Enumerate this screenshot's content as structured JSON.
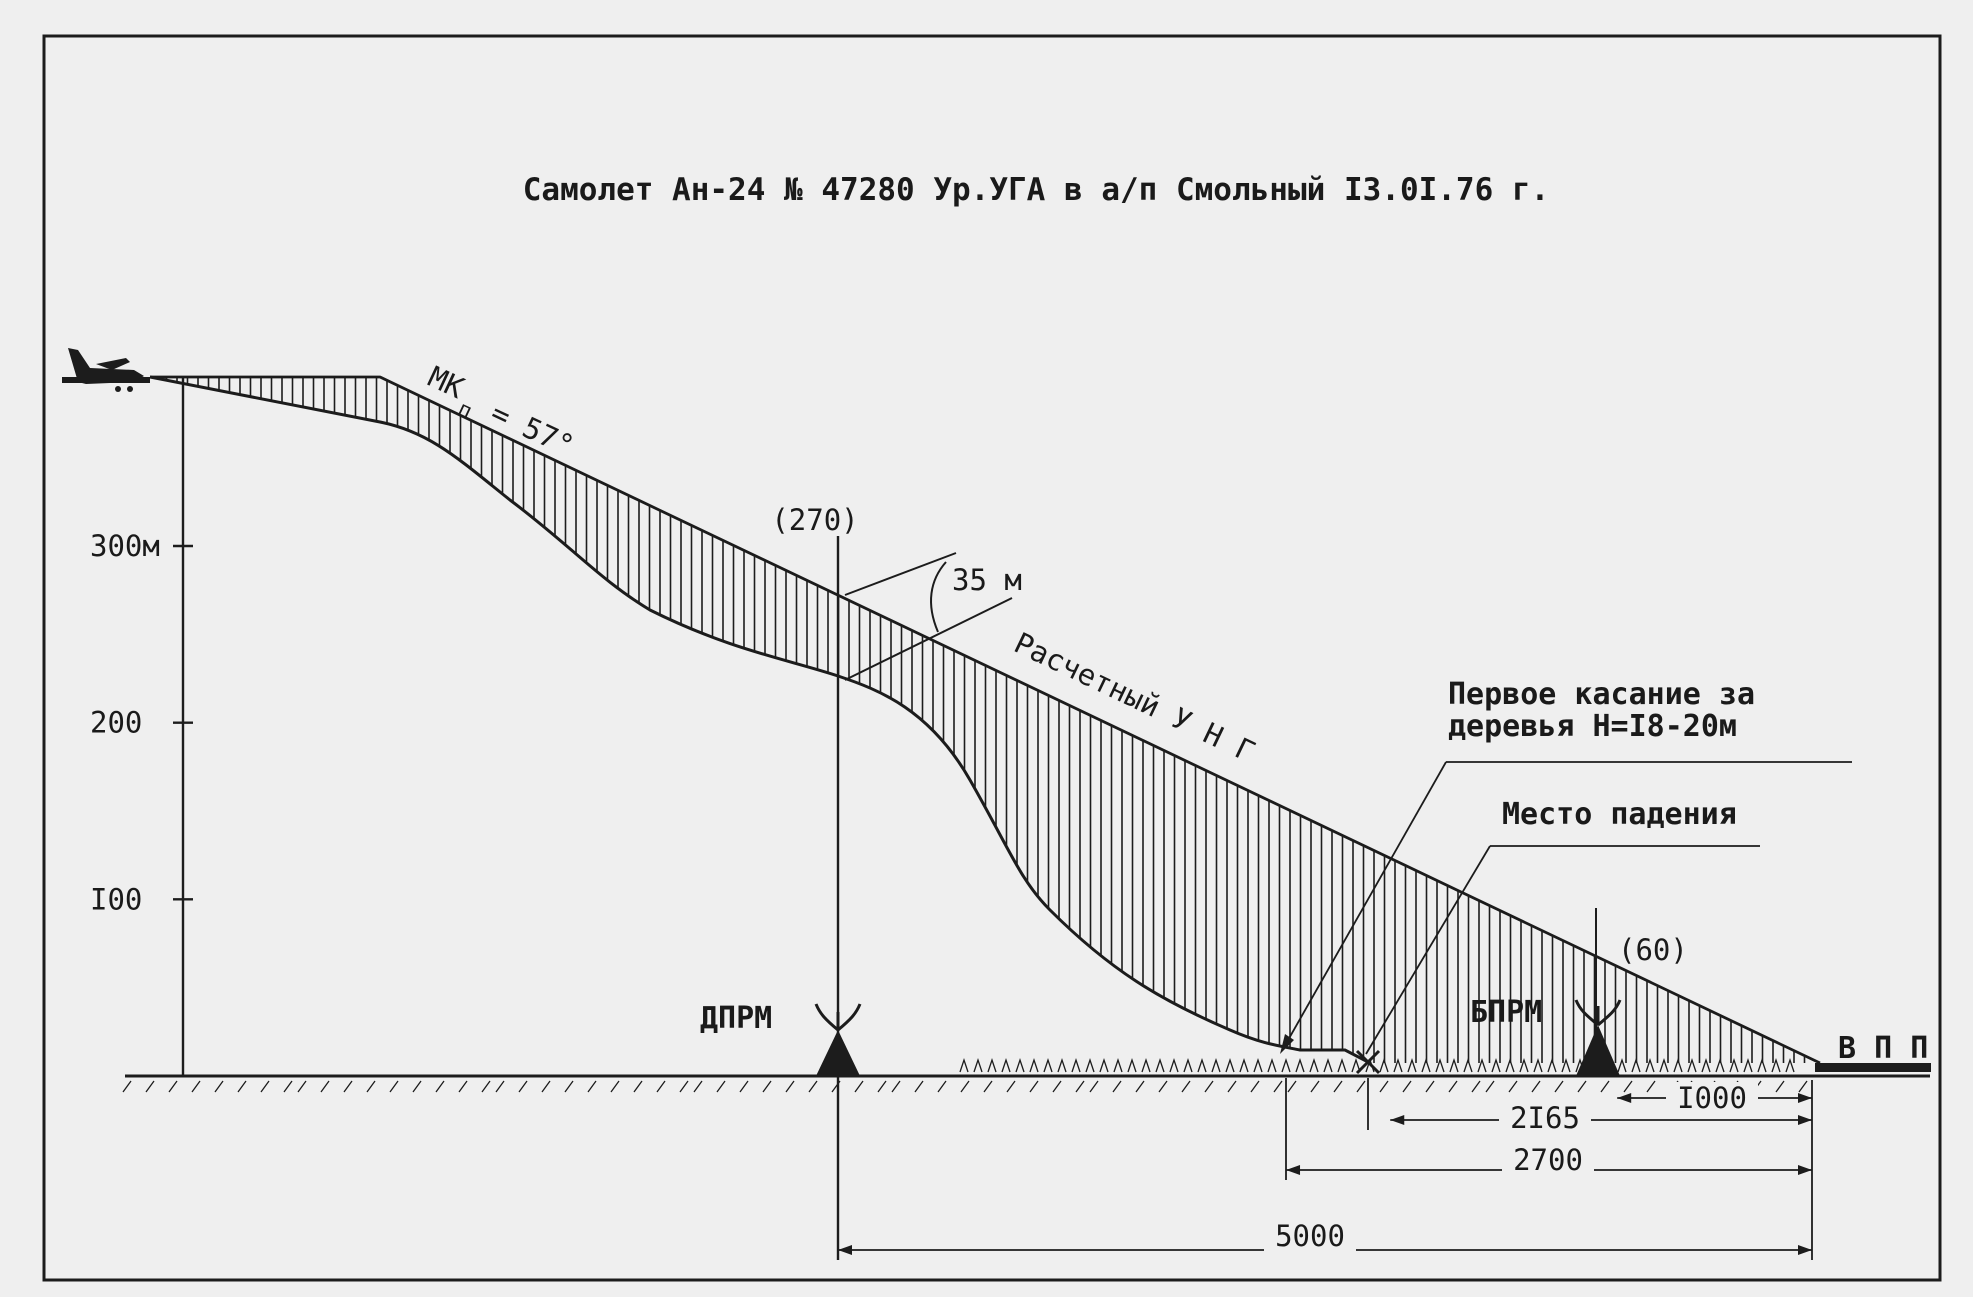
{
  "title": "Самолет Ан-24 № 47280 Ур.УГА в а/п Смольный I3.0I.76 г.",
  "y_axis": {
    "ticks": [
      {
        "value": 300,
        "label": "300м"
      },
      {
        "value": 200,
        "label": "200"
      },
      {
        "value": 100,
        "label": "I00"
      }
    ]
  },
  "labels": {
    "mk": "МК",
    "mk_sub": "п",
    "mk_value": "= 57°",
    "alt_270": "(270)",
    "alt_60": "(60)",
    "dev_35": "35 м",
    "unp": "Расчетный У Н Г",
    "first_contact_1": "Первое касание за",
    "first_contact_2": "деревья Н=I8-20м",
    "crash_site": "Место падения",
    "dprm": "ДПРМ",
    "bprm": "БПРМ",
    "vpp": "В П П"
  },
  "distances": [
    {
      "value": 1000,
      "label": "I000"
    },
    {
      "value": 2165,
      "label": "2I65"
    },
    {
      "value": 2700,
      "label": "2700"
    },
    {
      "value": 5000,
      "label": "5000"
    }
  ],
  "colors": {
    "ink": "#1c1c1c",
    "paper": "#efefef"
  }
}
